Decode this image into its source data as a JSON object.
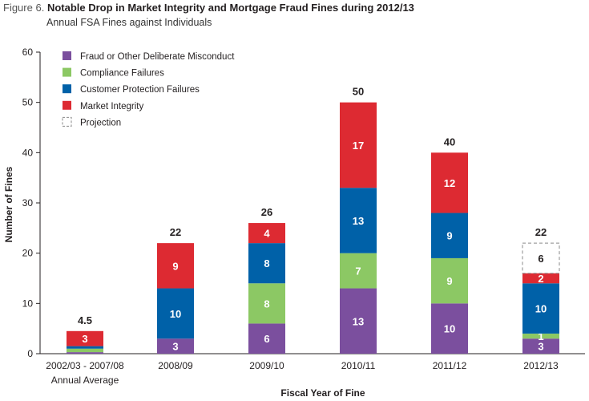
{
  "figure_label": "Figure 6.",
  "chart_data": {
    "type": "bar",
    "stacked": true,
    "title": "Notable Drop in Market Integrity and Mortgage Fraud Fines during 2012/13",
    "subtitle": "Annual FSA Fines against Individuals",
    "xlabel": "Fiscal Year of Fine",
    "ylabel": "Number of Fines",
    "ylim": [
      0,
      60
    ],
    "yticks": [
      0,
      10,
      20,
      30,
      40,
      50,
      60
    ],
    "categories": [
      "2002/03 - 2007/08",
      "2008/09",
      "2009/10",
      "2010/11",
      "2011/12",
      "2012/13"
    ],
    "category_sublabels": [
      "Annual Average",
      "",
      "",
      "",
      "",
      ""
    ],
    "series": [
      {
        "name": "Fraud or Other Deliberate Misconduct",
        "color": "#7b4f9e",
        "values": [
          0.3,
          3,
          6,
          13,
          10,
          3
        ],
        "labels": [
          "",
          "3",
          "6",
          "13",
          "10",
          "3"
        ]
      },
      {
        "name": "Compliance Failures",
        "color": "#8cc864",
        "values": [
          0.7,
          0,
          8,
          7,
          9,
          1
        ],
        "labels": [
          "",
          "",
          "8",
          "7",
          "9",
          "1"
        ]
      },
      {
        "name": "Customer Protection Failures",
        "color": "#0061a8",
        "values": [
          0.5,
          10,
          8,
          13,
          9,
          10
        ],
        "labels": [
          "",
          "10",
          "8",
          "13",
          "9",
          "10"
        ]
      },
      {
        "name": "Market Integrity",
        "color": "#dd2a32",
        "values": [
          3,
          9,
          4,
          17,
          12,
          2
        ],
        "labels": [
          "3",
          "9",
          "4",
          "17",
          "12",
          "2"
        ]
      },
      {
        "name": "Projection",
        "color": "none",
        "dashed": true,
        "values": [
          0,
          0,
          0,
          0,
          0,
          6
        ],
        "labels": [
          "",
          "",
          "",
          "",
          "",
          "6"
        ]
      }
    ],
    "totals": [
      "4.5",
      "22",
      "26",
      "50",
      "40",
      "22"
    ],
    "legend_position": "top-left"
  }
}
